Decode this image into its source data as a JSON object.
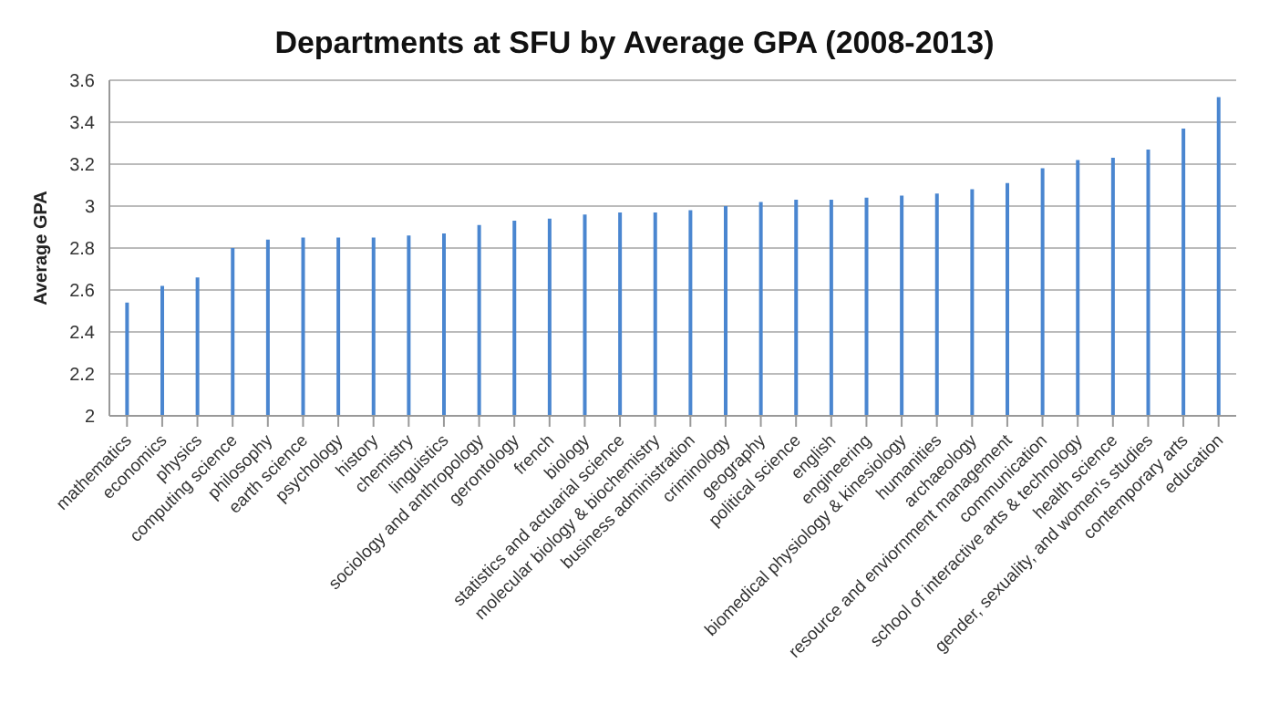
{
  "chart_data": {
    "type": "bar",
    "title": "Departments at SFU by Average GPA (2008-2013)",
    "ylabel": "Average GPA",
    "categories": [
      "mathematics",
      "economics",
      "physics",
      "computing science",
      "philosophy",
      "earth science",
      "psychology",
      "history",
      "chemistry",
      "linguistics",
      "sociology and anthropology",
      "gerontology",
      "french",
      "biology",
      "statistics and actuarial science",
      "molecular biology & biochemistry",
      "business administration",
      "criminology",
      "geography",
      "political science",
      "english",
      "engineering",
      "biomedical physiology & kinesiology",
      "humanities",
      "archaeology",
      "resource and enviornment management",
      "communication",
      "school of interactive arts & technology",
      "health science",
      "gender, sexuality, and women's studies",
      "contemporary arts",
      "education"
    ],
    "values": [
      2.54,
      2.62,
      2.66,
      2.8,
      2.84,
      2.85,
      2.85,
      2.85,
      2.86,
      2.87,
      2.91,
      2.93,
      2.94,
      2.96,
      2.97,
      2.97,
      2.98,
      3.0,
      3.02,
      3.03,
      3.03,
      3.04,
      3.05,
      3.06,
      3.08,
      3.11,
      3.18,
      3.22,
      3.23,
      3.27,
      3.37,
      3.52
    ],
    "color": "#4a86d0",
    "ylim": [
      2,
      3.6
    ],
    "yticks": [
      2,
      2.2,
      2.4,
      2.6,
      2.8,
      3,
      3.2,
      3.4,
      3.6
    ],
    "grid": "y"
  }
}
